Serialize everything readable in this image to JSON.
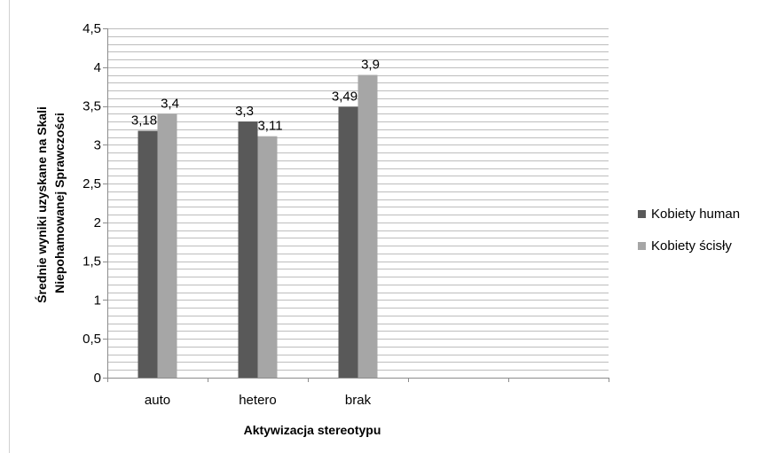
{
  "chart_data": {
    "type": "bar",
    "categories": [
      "auto",
      "hetero",
      "brak"
    ],
    "series": [
      {
        "name": "Kobiety human",
        "values": [
          3.18,
          3.3,
          3.49
        ],
        "labels": [
          "3,18",
          "3,3",
          "3,49"
        ],
        "color": "#595959"
      },
      {
        "name": "Kobiety ścisły",
        "values": [
          3.4,
          3.11,
          3.9
        ],
        "labels": [
          "3,4",
          "3,11",
          "3,9"
        ],
        "color": "#a6a6a6"
      }
    ],
    "xlabel": "Aktywizacja stereotypu",
    "ylabel_lines": [
      "Średnie wyniki uzyskane na Skali",
      "Niepohamowanej Sprawczości"
    ],
    "ylim": [
      0,
      4.5
    ],
    "yticks": [
      0,
      0.5,
      1,
      1.5,
      2,
      2.5,
      3,
      3.5,
      4,
      4.5
    ],
    "ytick_labels": [
      "0",
      "0,5",
      "1",
      "1,5",
      "2",
      "2,5",
      "3",
      "3,5",
      "4",
      "4,5"
    ],
    "minor_grid_step": 0.1,
    "grid": true,
    "legend_position": "right",
    "category_slots": 5
  }
}
